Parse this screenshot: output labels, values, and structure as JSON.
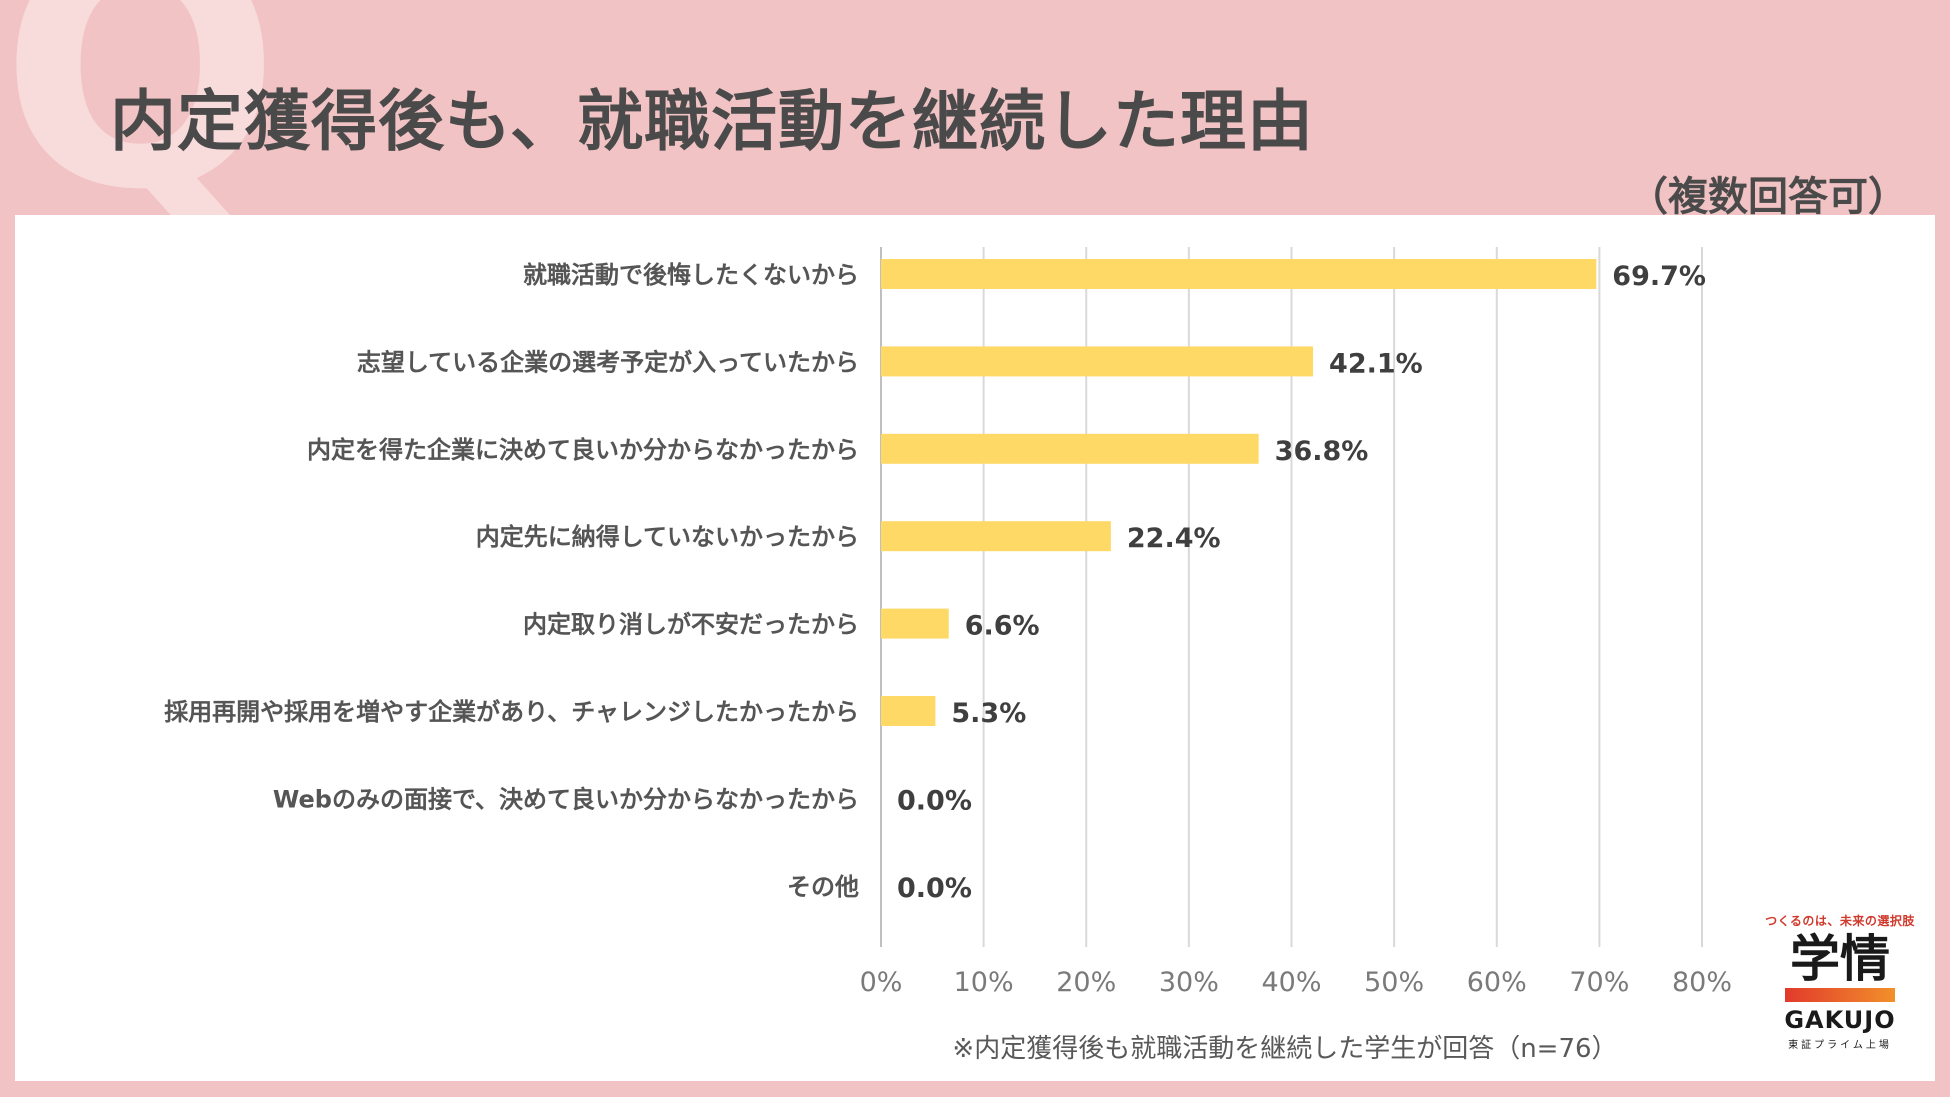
{
  "header": {
    "q_mark": "Q",
    "title": "内定獲得後も、就職活動を継続した理由",
    "subtitle": "（複数回答可）"
  },
  "footnote": "※内定獲得後も就職活動を継続した学生が回答（n=76）",
  "logo": {
    "tagline": "つくるのは、未来の選択肢",
    "kanji": "学情",
    "name": "GAKUJO",
    "sub": "東証プライム上場",
    "color_start": "#e13a2b",
    "color_end": "#f2902b"
  },
  "colors": {
    "bar": "#ffd966",
    "background": "#f2c3c4",
    "text": "#4a4a4a",
    "grid": "#d9d9d9"
  },
  "chart_data": {
    "type": "bar",
    "orientation": "horizontal",
    "categories": [
      "就職活動で後悔したくないから",
      "志望している企業の選考予定が入っていたから",
      "内定を得た企業に決めて良いか分からなかったから",
      "内定先に納得していないかったから",
      "内定取り消しが不安だったから",
      "採用再開や採用を増やす企業があり、チャレンジしたかったから",
      "Webのみの面接で、決めて良いか分からなかったから",
      "その他"
    ],
    "values": [
      69.7,
      42.1,
      36.8,
      22.4,
      6.6,
      5.3,
      0.0,
      0.0
    ],
    "value_labels": [
      "69.7%",
      "42.1%",
      "36.8%",
      "22.4%",
      "6.6%",
      "5.3%",
      "0.0%",
      "0.0%"
    ],
    "xlim": [
      0,
      80
    ],
    "xticks": [
      "0%",
      "10%",
      "20%",
      "30%",
      "40%",
      "50%",
      "60%",
      "70%",
      "80%"
    ],
    "title": "内定獲得後も、就職活動を継続した理由",
    "xlabel": "",
    "ylabel": "",
    "grid": true
  }
}
